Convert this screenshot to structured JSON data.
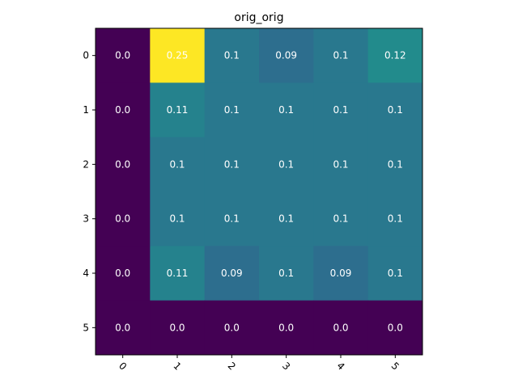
{
  "chart_data": {
    "type": "heatmap",
    "title": "orig_orig",
    "xlabel": "",
    "ylabel": "",
    "x_categories": [
      "0",
      "1",
      "2",
      "3",
      "4",
      "5"
    ],
    "y_categories": [
      "0",
      "1",
      "2",
      "3",
      "4",
      "5"
    ],
    "values": [
      [
        0.0,
        0.25,
        0.1,
        0.09,
        0.1,
        0.12
      ],
      [
        0.0,
        0.11,
        0.1,
        0.1,
        0.1,
        0.1
      ],
      [
        0.0,
        0.1,
        0.1,
        0.1,
        0.1,
        0.1
      ],
      [
        0.0,
        0.1,
        0.1,
        0.1,
        0.1,
        0.1
      ],
      [
        0.0,
        0.11,
        0.09,
        0.1,
        0.09,
        0.1
      ],
      [
        0.0,
        0.0,
        0.0,
        0.0,
        0.0,
        0.0
      ]
    ],
    "labels": [
      [
        "0.0",
        "0.25",
        "0.1",
        "0.09",
        "0.1",
        "0.12"
      ],
      [
        "0.0",
        "0.11",
        "0.1",
        "0.1",
        "0.1",
        "0.1"
      ],
      [
        "0.0",
        "0.1",
        "0.1",
        "0.1",
        "0.1",
        "0.1"
      ],
      [
        "0.0",
        "0.1",
        "0.1",
        "0.1",
        "0.1",
        "0.1"
      ],
      [
        "0.0",
        "0.11",
        "0.09",
        "0.1",
        "0.09",
        "0.1"
      ],
      [
        "0.0",
        "0.0",
        "0.0",
        "0.0",
        "0.0",
        "0.0"
      ]
    ],
    "colormap": "viridis",
    "value_range": [
      0.0,
      0.25
    ],
    "x_tick_rotation": "45 degrees",
    "grid": false,
    "colorbar": false
  },
  "colors": {
    "text_on_cells": "#ffffff",
    "axis": "#000000",
    "background": "#ffffff"
  }
}
